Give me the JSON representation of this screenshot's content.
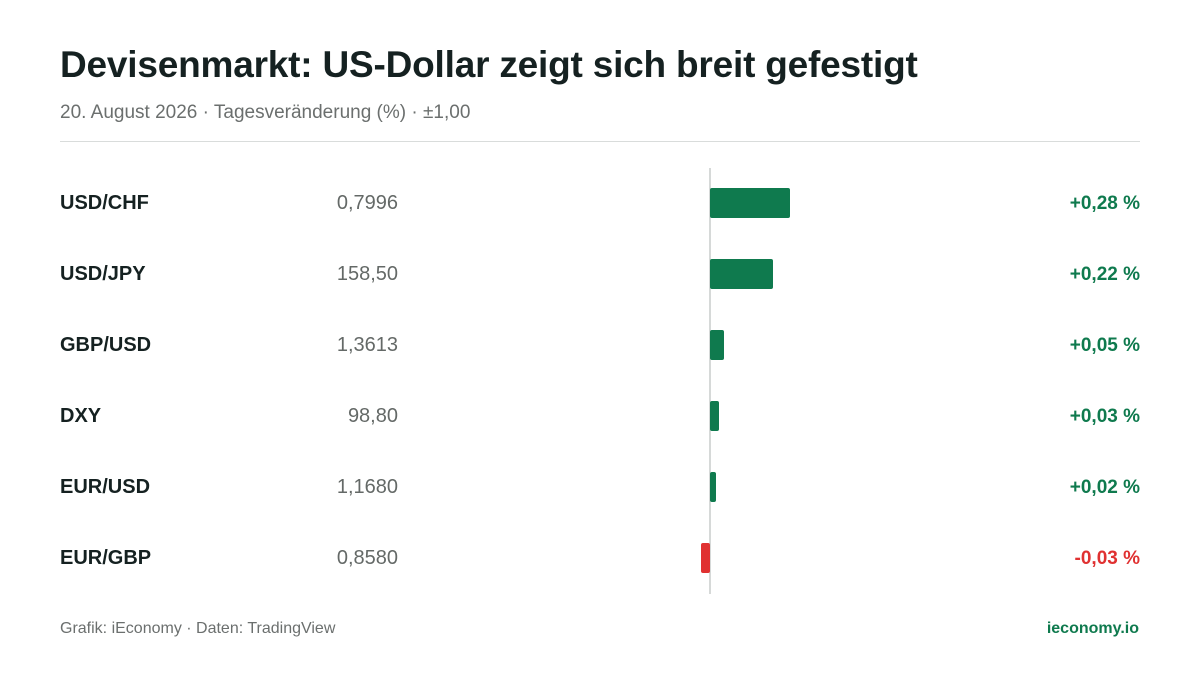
{
  "header": {
    "title": "Devisenmarkt: US-Dollar zeigt sich breit gefestigt",
    "subtitle": "20. August 2026 · Tagesveränderung (%) · ±1,00"
  },
  "footer": {
    "source": "Grafik: iEconomy · Daten: TradingView",
    "brand": "ieconomy.io"
  },
  "colors": {
    "positive": "#0f7a4e",
    "negative": "#e03131",
    "positive_text": "#0f7a4e",
    "negative_text": "#e03131"
  },
  "chart_data": {
    "type": "bar",
    "orientation": "horizontal",
    "title": "Devisenmarkt: US-Dollar zeigt sich breit gefestigt",
    "subtitle": "20. August 2026 · Tagesveränderung (%) · ±1,00",
    "xlim": [
      -1.0,
      1.0
    ],
    "grid": false,
    "rows": [
      {
        "pair": "USD/CHF",
        "rate": "0,7996",
        "change": 0.28,
        "change_label": "+0,28 %"
      },
      {
        "pair": "USD/JPY",
        "rate": "158,50",
        "change": 0.22,
        "change_label": "+0,22 %"
      },
      {
        "pair": "GBP/USD",
        "rate": "1,3613",
        "change": 0.05,
        "change_label": "+0,05 %"
      },
      {
        "pair": "DXY",
        "rate": "98,80",
        "change": 0.03,
        "change_label": "+0,03 %"
      },
      {
        "pair": "EUR/USD",
        "rate": "1,1680",
        "change": 0.02,
        "change_label": "+0,02 %"
      },
      {
        "pair": "EUR/GBP",
        "rate": "0,8580",
        "change": -0.03,
        "change_label": "-0,03 %"
      }
    ]
  }
}
